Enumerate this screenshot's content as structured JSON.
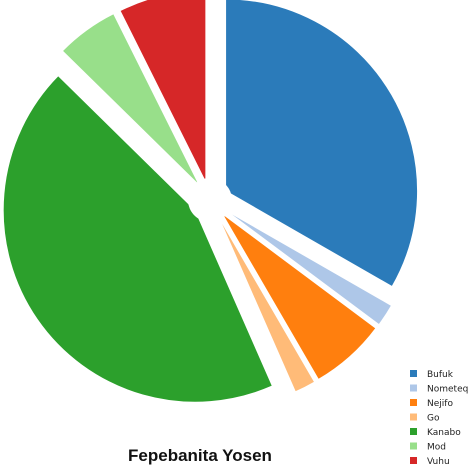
{
  "chart_data": {
    "type": "pie",
    "title": "Fepebanita Yosen",
    "legend_position": "bottom-right",
    "slices": [
      {
        "label": "Bufuk",
        "value": 31.6,
        "color": "#2b7bba"
      },
      {
        "label": "Nometeq",
        "value": 1.8,
        "color": "#aec7e8"
      },
      {
        "label": "Nejifo",
        "value": 6.1,
        "color": "#ff7f0e"
      },
      {
        "label": "Go",
        "value": 1.7,
        "color": "#ffbb78"
      },
      {
        "label": "Kanabo",
        "value": 41.7,
        "color": "#2ca02c"
      },
      {
        "label": "Mod",
        "value": 5.0,
        "color": "#98df8a"
      },
      {
        "label": "Vuhu",
        "value": 7.0,
        "color": "#d62728"
      }
    ]
  }
}
